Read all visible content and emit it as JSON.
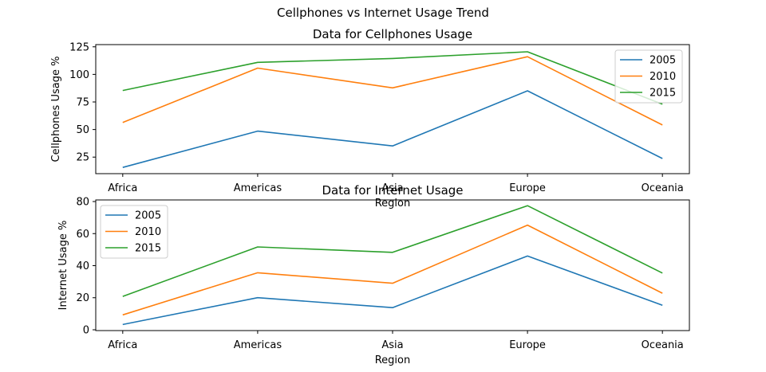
{
  "figure": {
    "suptitle": "Cellphones vs Internet Usage Trend"
  },
  "colors": {
    "2005": "#1f77b4",
    "2010": "#ff7f0e",
    "2015": "#2ca02c"
  },
  "chart_data": [
    {
      "type": "line",
      "title": "Data for Cellphones Usage",
      "xlabel": "Region",
      "ylabel": "Cellphones Usage %",
      "categories": [
        "Africa",
        "Americas",
        "Asia",
        "Europe",
        "Oceania"
      ],
      "ylim": [
        10,
        127
      ],
      "yticks": [
        25,
        50,
        75,
        100,
        125
      ],
      "legend_position": "upper right",
      "series": [
        {
          "name": "2005",
          "values": [
            15.6,
            48.6,
            35.1,
            85.1,
            23.7
          ]
        },
        {
          "name": "2010",
          "values": [
            56.4,
            105.7,
            87.8,
            116.0,
            54.1
          ]
        },
        {
          "name": "2015",
          "values": [
            85.4,
            110.9,
            114.4,
            120.5,
            73.0
          ]
        }
      ]
    },
    {
      "type": "line",
      "title": "Data for Internet Usage",
      "xlabel": "Region",
      "ylabel": "Internet Usage %",
      "categories": [
        "Africa",
        "Americas",
        "Asia",
        "Europe",
        "Oceania"
      ],
      "ylim": [
        -0.5,
        81
      ],
      "yticks": [
        0,
        20,
        40,
        60,
        80
      ],
      "legend_position": "upper left",
      "series": [
        {
          "name": "2005",
          "values": [
            3.3,
            20.0,
            13.8,
            46.0,
            15.3
          ]
        },
        {
          "name": "2010",
          "values": [
            9.3,
            35.6,
            29.0,
            65.3,
            22.8
          ]
        },
        {
          "name": "2015",
          "values": [
            20.8,
            51.7,
            48.3,
            77.4,
            35.4
          ]
        }
      ]
    }
  ]
}
